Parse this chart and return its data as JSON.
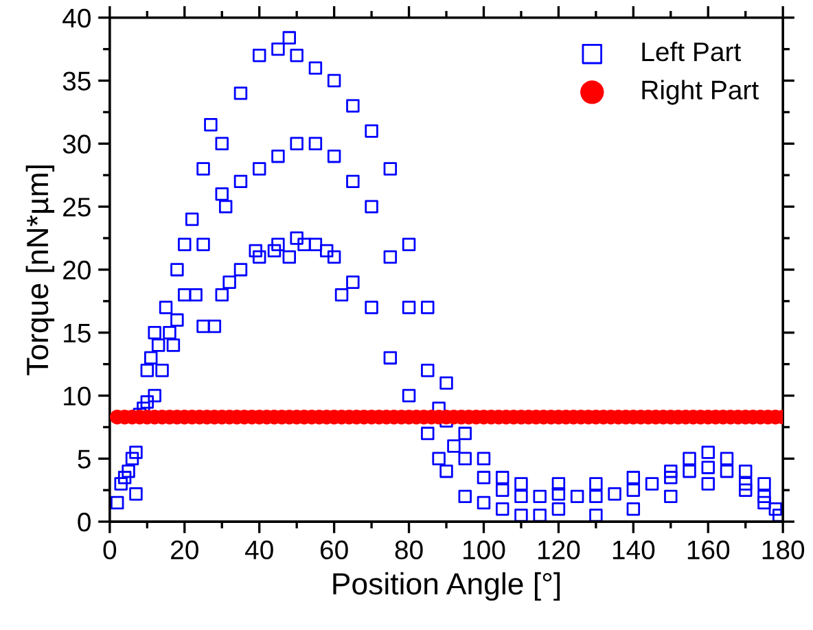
{
  "chart_data": {
    "type": "scatter",
    "xlabel": "Position Angle [°]",
    "ylabel": "Torque [nN*µm]",
    "xlim": [
      0,
      180
    ],
    "xticks": [
      0,
      20,
      40,
      60,
      80,
      100,
      120,
      140,
      160,
      180
    ],
    "ylim": [
      0,
      40
    ],
    "yticks": [
      0,
      5,
      10,
      15,
      20,
      25,
      30,
      35,
      40
    ],
    "legend": "top right",
    "grid": false,
    "series": [
      {
        "name": "Left Part",
        "color": "#0000ff",
        "marker": "square",
        "x": [
          2,
          3,
          4,
          5,
          6,
          7,
          7,
          8,
          9,
          10,
          10,
          11,
          12,
          12,
          13,
          14,
          15,
          16,
          17,
          18,
          18,
          20,
          22,
          23,
          27,
          28,
          31,
          32,
          39,
          44,
          48,
          52,
          58,
          62,
          25,
          30,
          35,
          40,
          45,
          48,
          50,
          55,
          60,
          65,
          70,
          75,
          80,
          85,
          90,
          95,
          100,
          105,
          110,
          120,
          130,
          140,
          150,
          155,
          160,
          165,
          170,
          175,
          178,
          20,
          25,
          30,
          35,
          40,
          45,
          50,
          55,
          60,
          65,
          70,
          75,
          80,
          85,
          88,
          90,
          92,
          95,
          100,
          105,
          110,
          115,
          120,
          125,
          130,
          135,
          140,
          145,
          150,
          155,
          160,
          165,
          170,
          175,
          179,
          25,
          30,
          35,
          40,
          45,
          50,
          55,
          60,
          65,
          70,
          75,
          80,
          85,
          88,
          90,
          95,
          100,
          105,
          110,
          115,
          120,
          130,
          140,
          150,
          160,
          170,
          175
        ],
        "values": [
          1.5,
          3,
          3.5,
          4,
          5,
          2.2,
          5.5,
          8.5,
          9,
          12,
          9.5,
          13,
          15,
          10,
          14,
          12,
          17,
          15,
          14,
          20,
          16,
          22,
          24,
          18,
          31.5,
          15.5,
          25,
          19,
          21.5,
          21.5,
          21,
          22,
          21.5,
          18,
          28,
          30,
          34,
          37,
          37.5,
          38.4,
          37,
          36,
          35,
          33,
          31,
          28,
          22,
          17,
          11,
          7,
          5,
          3.5,
          3,
          3,
          3,
          3.5,
          4,
          5,
          5.5,
          5,
          4,
          3,
          1,
          18,
          22,
          26,
          27,
          28,
          29,
          30,
          30,
          29,
          27,
          25,
          21,
          17,
          12,
          9,
          8,
          6,
          5,
          3.5,
          2.5,
          2,
          2,
          2.2,
          2,
          2,
          2.2,
          2.5,
          3,
          3.5,
          4,
          4.3,
          4,
          3,
          2,
          0.5,
          15.5,
          18,
          20,
          21,
          22,
          22.5,
          22,
          21,
          19,
          17,
          13,
          10,
          7,
          5,
          4,
          2,
          1.5,
          1,
          0.5,
          0.5,
          1,
          0.5,
          1,
          2,
          3,
          2.5,
          1.5
        ]
      },
      {
        "name": "Right Part",
        "color": "#ff0000",
        "marker": "circle",
        "x": [
          2,
          4,
          6,
          8,
          10,
          12,
          14,
          16,
          18,
          20,
          22,
          24,
          26,
          28,
          30,
          32,
          34,
          36,
          38,
          40,
          42,
          44,
          46,
          48,
          50,
          52,
          54,
          56,
          58,
          60,
          62,
          64,
          66,
          68,
          70,
          72,
          74,
          76,
          78,
          80,
          82,
          84,
          86,
          88,
          90,
          92,
          94,
          96,
          98,
          100,
          102,
          104,
          106,
          108,
          110,
          112,
          114,
          116,
          118,
          120,
          122,
          124,
          126,
          128,
          130,
          132,
          134,
          136,
          138,
          140,
          142,
          144,
          146,
          148,
          150,
          152,
          154,
          156,
          158,
          160,
          162,
          164,
          166,
          168,
          170,
          172,
          174,
          176,
          178,
          180
        ],
        "values": [
          8.3,
          8.3,
          8.3,
          8.3,
          8.3,
          8.3,
          8.3,
          8.3,
          8.3,
          8.3,
          8.3,
          8.3,
          8.3,
          8.3,
          8.3,
          8.3,
          8.3,
          8.3,
          8.3,
          8.3,
          8.3,
          8.3,
          8.3,
          8.3,
          8.3,
          8.3,
          8.3,
          8.3,
          8.3,
          8.3,
          8.3,
          8.3,
          8.3,
          8.3,
          8.3,
          8.3,
          8.3,
          8.3,
          8.3,
          8.3,
          8.3,
          8.3,
          8.3,
          8.3,
          8.3,
          8.3,
          8.3,
          8.3,
          8.3,
          8.3,
          8.3,
          8.3,
          8.3,
          8.3,
          8.3,
          8.3,
          8.3,
          8.3,
          8.3,
          8.3,
          8.3,
          8.3,
          8.3,
          8.3,
          8.3,
          8.3,
          8.3,
          8.3,
          8.3,
          8.3,
          8.3,
          8.3,
          8.3,
          8.3,
          8.3,
          8.3,
          8.3,
          8.3,
          8.3,
          8.3,
          8.3,
          8.3,
          8.3,
          8.3,
          8.3,
          8.3,
          8.3,
          8.3,
          8.3,
          8.3
        ]
      }
    ]
  }
}
